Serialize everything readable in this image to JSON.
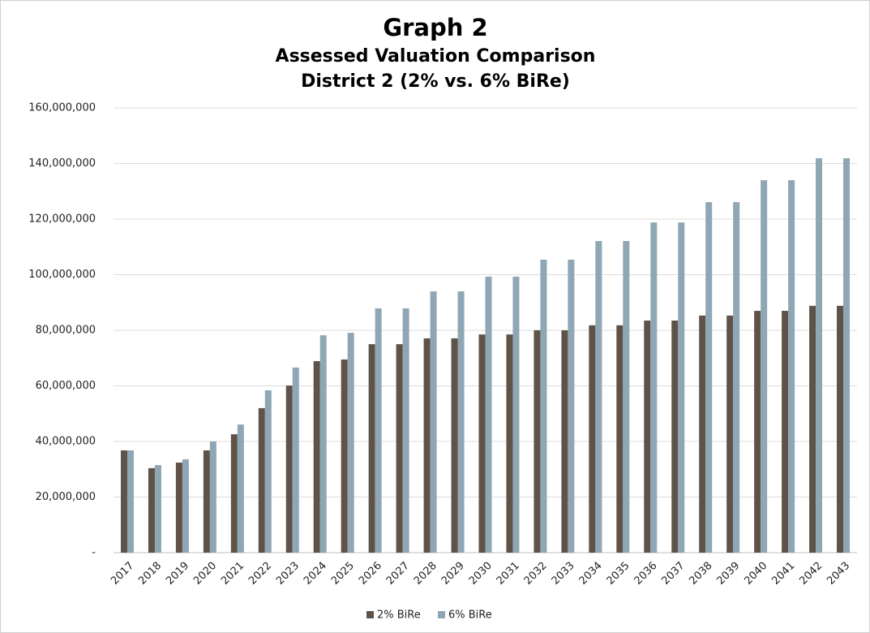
{
  "chart_data": {
    "type": "bar",
    "title": "Graph 2",
    "subtitle": [
      "Assessed Valuation Comparison",
      "District 2 (2% vs. 6% BiRe)"
    ],
    "categories": [
      "2017",
      "2018",
      "2019",
      "2020",
      "2021",
      "2022",
      "2023",
      "2024",
      "2025",
      "2026",
      "2027",
      "2028",
      "2029",
      "2030",
      "2031",
      "2032",
      "2033",
      "2034",
      "2035",
      "2036",
      "2037",
      "2038",
      "2039",
      "2040",
      "2041",
      "2042",
      "2043"
    ],
    "series": [
      {
        "name": "2% BiRe",
        "color": "#5f5249",
        "values": [
          36800000,
          30400000,
          32400000,
          36800000,
          42600000,
          52000000,
          60100000,
          68900000,
          69500000,
          75000000,
          75000000,
          77100000,
          77100000,
          78500000,
          78500000,
          80000000,
          80000000,
          81800000,
          81800000,
          83500000,
          83500000,
          85300000,
          85300000,
          87000000,
          87000000,
          88800000,
          88800000
        ]
      },
      {
        "name": "6% BiRe",
        "color": "#8fa6b4",
        "values": [
          36800000,
          31500000,
          33600000,
          40000000,
          46100000,
          58400000,
          66600000,
          78200000,
          79100000,
          87900000,
          87900000,
          94000000,
          94000000,
          99300000,
          99300000,
          105400000,
          105400000,
          112100000,
          112100000,
          118800000,
          118800000,
          126100000,
          126100000,
          134000000,
          134000000,
          141900000,
          141900000
        ]
      }
    ],
    "ylim": [
      0,
      160000000
    ],
    "yticks": [
      {
        "value": 0,
        "label": "-"
      },
      {
        "value": 20000000,
        "label": "20,000,000"
      },
      {
        "value": 40000000,
        "label": "40,000,000"
      },
      {
        "value": 60000000,
        "label": "60,000,000"
      },
      {
        "value": 80000000,
        "label": "80,000,000"
      },
      {
        "value": 100000000,
        "label": "100,000,000"
      },
      {
        "value": 120000000,
        "label": "120,000,000"
      },
      {
        "value": 140000000,
        "label": "140,000,000"
      },
      {
        "value": 160000000,
        "label": "160,000,000"
      }
    ],
    "grid": true,
    "legend": "bottom"
  }
}
